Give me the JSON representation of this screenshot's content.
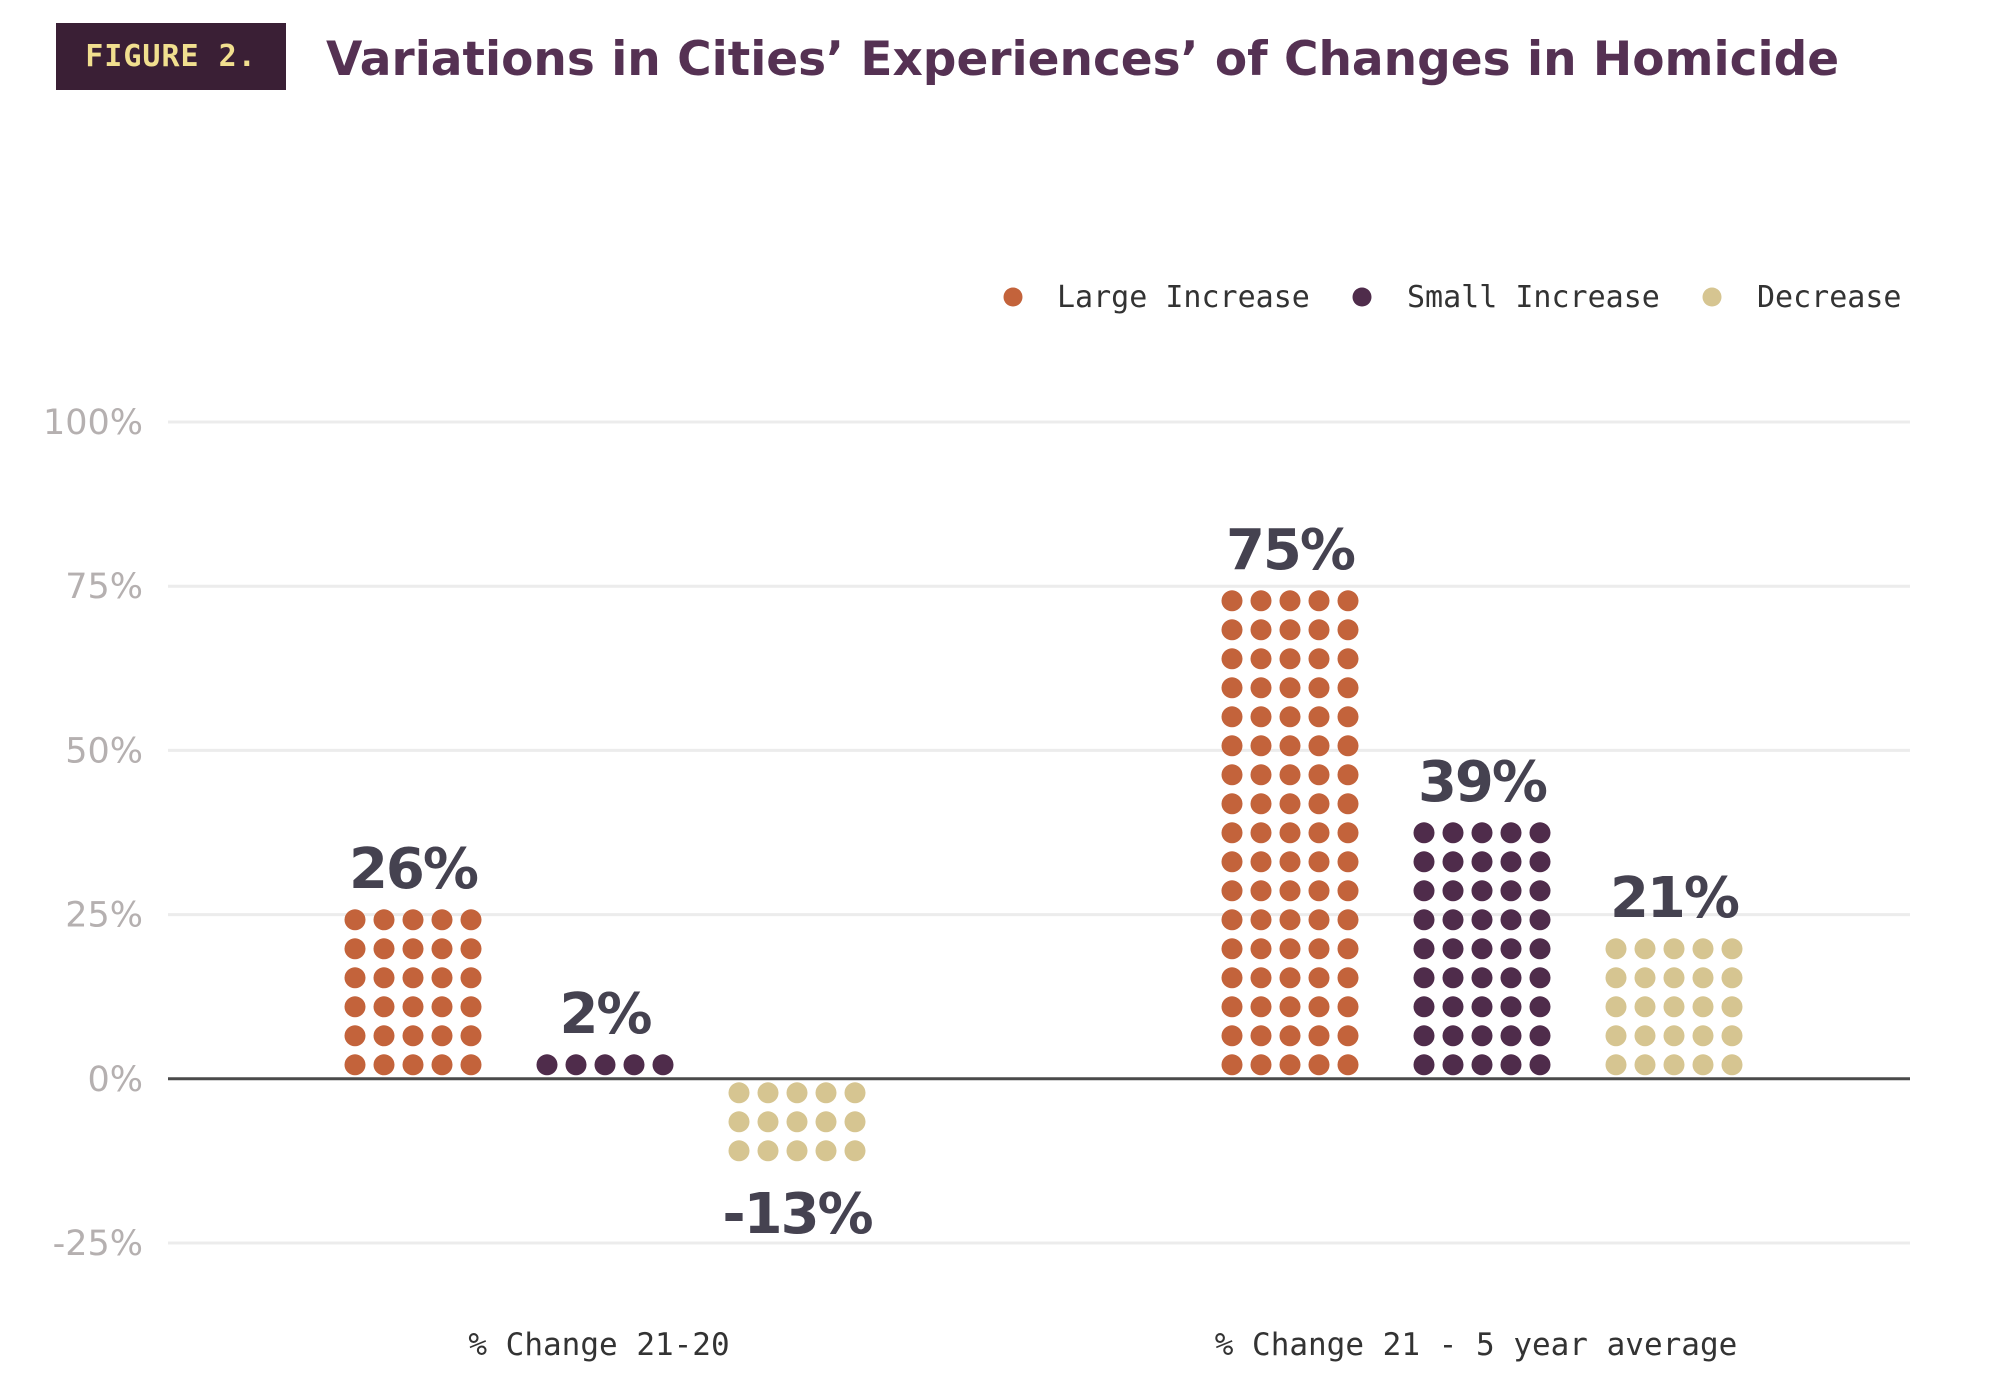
{
  "figure_label": "FIGURE 2.",
  "chart_data": {
    "type": "bar",
    "title": "Variations in Cities’ Experiences’ of Changes in Homicide",
    "categories": [
      "% Change 21-20",
      "% Change 21 - 5 year average"
    ],
    "series": [
      {
        "name": "Large Increase",
        "color": "#c3633b",
        "values": [
          26,
          75
        ],
        "labels": [
          "26%",
          "75%"
        ]
      },
      {
        "name": "Small Increase",
        "color": "#4f2c4b",
        "values": [
          2,
          39
        ],
        "labels": [
          "2%",
          "39%"
        ]
      },
      {
        "name": "Decrease",
        "color": "#d6c591",
        "values": [
          -13,
          21
        ],
        "labels": [
          "-13%",
          "21%"
        ]
      }
    ],
    "ylim": [
      -25,
      100
    ],
    "yticks": [
      -25,
      0,
      25,
      50,
      75,
      100
    ],
    "ytick_labels": [
      "-25%",
      "0%",
      "25%",
      "50%",
      "75%",
      "100%"
    ],
    "xlabel": "",
    "ylabel": "",
    "grid": true,
    "legend_position": "top-right",
    "mark_style": "dot-stacked bars"
  }
}
